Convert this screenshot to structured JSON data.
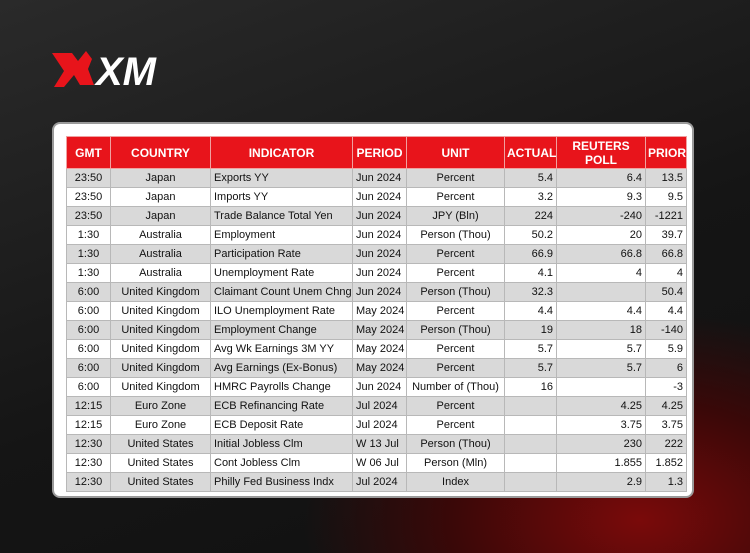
{
  "logo": {
    "text": "XM"
  },
  "table": {
    "headers": [
      "GMT",
      "COUNTRY",
      "INDICATOR",
      "PERIOD",
      "UNIT",
      "ACTUAL",
      "REUTERS POLL",
      "PRIOR"
    ],
    "rows": [
      [
        "23:50",
        "Japan",
        "Exports YY",
        "Jun 2024",
        "Percent",
        "5.4",
        "6.4",
        "13.5"
      ],
      [
        "23:50",
        "Japan",
        "Imports YY",
        "Jun 2024",
        "Percent",
        "3.2",
        "9.3",
        "9.5"
      ],
      [
        "23:50",
        "Japan",
        "Trade Balance Total Yen",
        "Jun 2024",
        "JPY (Bln)",
        "224",
        "-240",
        "-1221"
      ],
      [
        "1:30",
        "Australia",
        "Employment",
        "Jun 2024",
        "Person (Thou)",
        "50.2",
        "20",
        "39.7"
      ],
      [
        "1:30",
        "Australia",
        "Participation Rate",
        "Jun 2024",
        "Percent",
        "66.9",
        "66.8",
        "66.8"
      ],
      [
        "1:30",
        "Australia",
        "Unemployment Rate",
        "Jun 2024",
        "Percent",
        "4.1",
        "4",
        "4"
      ],
      [
        "6:00",
        "United Kingdom",
        "Claimant Count Unem Chng",
        "Jun 2024",
        "Person (Thou)",
        "32.3",
        null,
        "50.4"
      ],
      [
        "6:00",
        "United Kingdom",
        "ILO Unemployment Rate",
        "May 2024",
        "Percent",
        "4.4",
        "4.4",
        "4.4"
      ],
      [
        "6:00",
        "United Kingdom",
        "Employment Change",
        "May 2024",
        "Person (Thou)",
        "19",
        "18",
        "-140"
      ],
      [
        "6:00",
        "United Kingdom",
        "Avg Wk Earnings 3M YY",
        "May 2024",
        "Percent",
        "5.7",
        "5.7",
        "5.9"
      ],
      [
        "6:00",
        "United Kingdom",
        "Avg Earnings (Ex-Bonus)",
        "May 2024",
        "Percent",
        "5.7",
        "5.7",
        "6"
      ],
      [
        "6:00",
        "United Kingdom",
        "HMRC Payrolls Change",
        "Jun 2024",
        "Number of (Thou)",
        "16",
        null,
        "-3"
      ],
      [
        "12:15",
        "Euro Zone",
        "ECB Refinancing Rate",
        "Jul 2024",
        "Percent",
        null,
        "4.25",
        "4.25"
      ],
      [
        "12:15",
        "Euro Zone",
        "ECB Deposit Rate",
        "Jul 2024",
        "Percent",
        null,
        "3.75",
        "3.75"
      ],
      [
        "12:30",
        "United States",
        "Initial Jobless Clm",
        "W 13 Jul",
        "Person (Thou)",
        null,
        "230",
        "222"
      ],
      [
        "12:30",
        "United States",
        "Cont Jobless Clm",
        "W 06 Jul",
        "Person (Mln)",
        null,
        "1.855",
        "1.852"
      ],
      [
        "12:30",
        "United States",
        "Philly Fed Business Indx",
        "Jul 2024",
        "Index",
        null,
        "2.9",
        "1.3"
      ]
    ]
  }
}
